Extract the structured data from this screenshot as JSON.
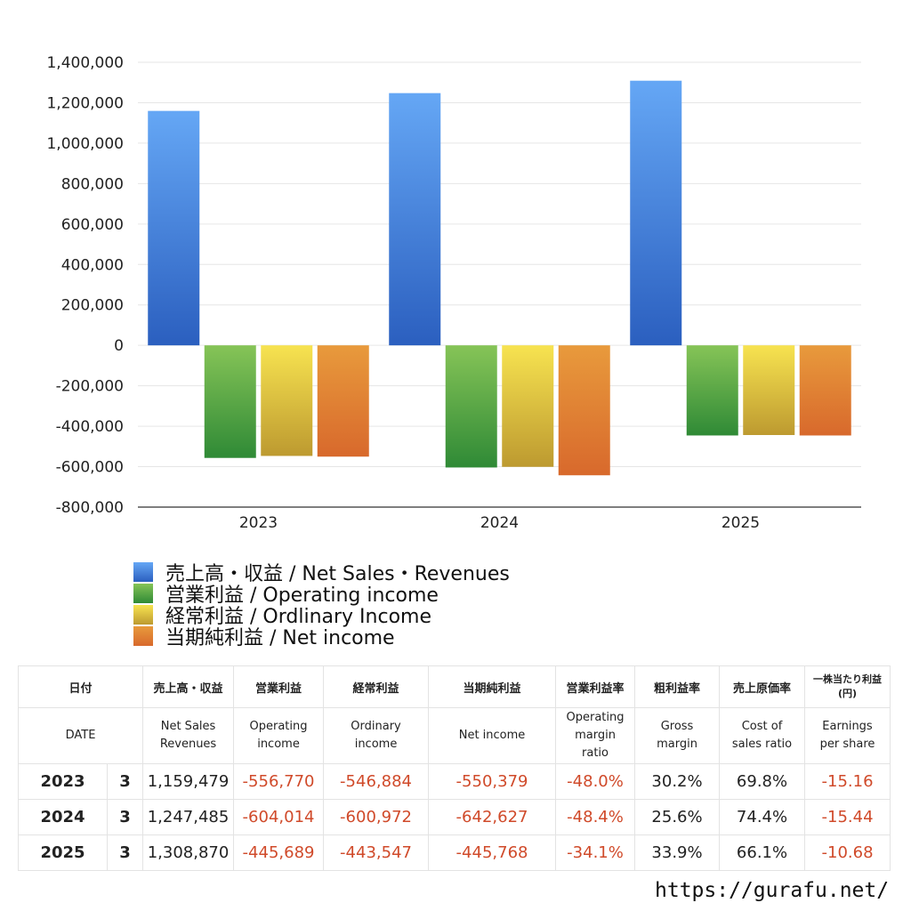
{
  "chart_data": {
    "type": "bar",
    "categories": [
      "2023",
      "2024",
      "2025"
    ],
    "series": [
      {
        "name": "売上高・収益 / Net Sales・Revenues",
        "values": [
          1159479,
          1247485,
          1308870
        ]
      },
      {
        "name": "営業利益 / Operating income",
        "values": [
          -556770,
          -604014,
          -445689
        ]
      },
      {
        "name": "経常利益 / Ordlinary Income",
        "values": [
          -546884,
          -600972,
          -443547
        ]
      },
      {
        "name": "当期純利益 / Net income",
        "values": [
          -550379,
          -642627,
          -445768
        ]
      }
    ],
    "ylim": [
      -800000,
      1400000
    ],
    "yticks": [
      "1,400,000",
      "1,200,000",
      "1,000,000",
      "800,000",
      "600,000",
      "400,000",
      "200,000",
      "0",
      "-200,000",
      "-400,000",
      "-600,000",
      "-800,000"
    ],
    "ytick_values": [
      1400000,
      1200000,
      1000000,
      800000,
      600000,
      400000,
      200000,
      0,
      -200000,
      -400000,
      -600000,
      -800000
    ],
    "grid": true,
    "legend": "bottom",
    "colors": [
      {
        "top": "#65a7f5",
        "bottom": "#2b5fbf"
      },
      {
        "top": "#86c457",
        "bottom": "#2f8a36"
      },
      {
        "top": "#f7e350",
        "bottom": "#bd9a30"
      },
      {
        "top": "#e89a3c",
        "bottom": "#d8692c"
      }
    ]
  },
  "table": {
    "headers_jp": [
      "日付",
      "売上高・収益",
      "営業利益",
      "経常利益",
      "当期純利益",
      "営業利益率",
      "粗利益率",
      "売上原価率",
      "一株当たり利益\n(円)"
    ],
    "headers_en": [
      "DATE",
      "Net Sales\nRevenues",
      "Operating\nincome",
      "Ordinary\nincome",
      "Net income",
      "Operating\nmargin\nratio",
      "Gross\nmargin",
      "Cost of\nsales ratio",
      "Earnings\nper share"
    ],
    "rows": [
      {
        "year": "2023",
        "month": "3",
        "sales": "1,159,479",
        "operating": "-556,770",
        "ordinary": "-546,884",
        "net": "-550,379",
        "op_margin": "-48.0%",
        "gross_margin": "30.2%",
        "cost_ratio": "69.8%",
        "eps": "-15.16"
      },
      {
        "year": "2024",
        "month": "3",
        "sales": "1,247,485",
        "operating": "-604,014",
        "ordinary": "-600,972",
        "net": "-642,627",
        "op_margin": "-48.4%",
        "gross_margin": "25.6%",
        "cost_ratio": "74.4%",
        "eps": "-15.44"
      },
      {
        "year": "2025",
        "month": "3",
        "sales": "1,308,870",
        "operating": "-445,689",
        "ordinary": "-443,547",
        "net": "-445,768",
        "op_margin": "-34.1%",
        "gross_margin": "33.9%",
        "cost_ratio": "66.1%",
        "eps": "-10.68"
      }
    ]
  },
  "footer": {
    "site": "https://gurafu.net/"
  }
}
